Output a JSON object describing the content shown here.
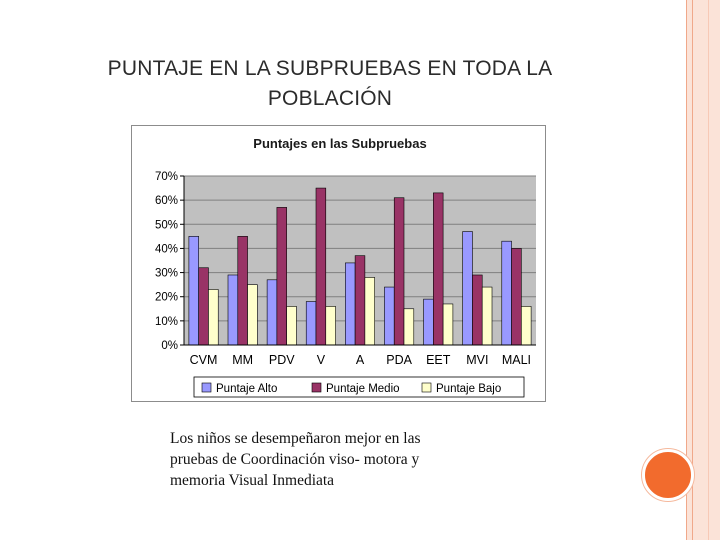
{
  "slide": {
    "title_line1": "PUNTAJE EN LA SUBPRUEBAS EN TODA LA",
    "title_line2": "POBLACIÓN",
    "caption_line1": "Los niños se desempeñaron mejor en las",
    "caption_line2": "pruebas de Coordinación viso- motora y",
    "caption_line3": "memoria Visual Inmediata"
  },
  "colors": {
    "accent_orange": "#f26b2d",
    "decor_pink": "#fbe3d8",
    "plot_background": "#c0c0c0"
  },
  "chart_data": {
    "type": "bar",
    "title": "Puntajes en las Subpruebas",
    "categories": [
      "CVM",
      "MM",
      "PDV",
      "V",
      "A",
      "PDA",
      "EET",
      "MVI",
      "MALI"
    ],
    "series": [
      {
        "name": "Puntaje Alto",
        "color": "#9999ff",
        "values": [
          45,
          29,
          27,
          18,
          34,
          24,
          19,
          47,
          43
        ]
      },
      {
        "name": "Puntaje Medio",
        "color": "#993366",
        "values": [
          32,
          45,
          57,
          65,
          37,
          61,
          63,
          29,
          40
        ]
      },
      {
        "name": "Puntaje Bajo",
        "color": "#ffffcc",
        "values": [
          23,
          25,
          16,
          16,
          28,
          15,
          17,
          24,
          16
        ]
      }
    ],
    "yticks": [
      "0%",
      "10%",
      "20%",
      "30%",
      "40%",
      "50%",
      "60%",
      "70%"
    ],
    "ylim": [
      0,
      70
    ],
    "grid": true,
    "legend_position": "bottom"
  }
}
